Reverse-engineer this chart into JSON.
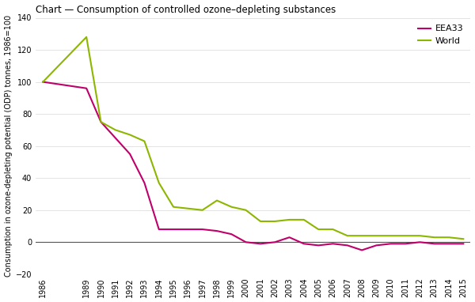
{
  "title": "Chart — Consumption of controlled ozone–depleting substances",
  "ylabel": "Consumption in ozone-depleting potential (ODP) tonnes, 1986=100",
  "years": [
    1986,
    1989,
    1990,
    1991,
    1992,
    1993,
    1994,
    1995,
    1996,
    1997,
    1998,
    1999,
    2000,
    2001,
    2002,
    2003,
    2004,
    2005,
    2006,
    2007,
    2008,
    2009,
    2010,
    2011,
    2012,
    2013,
    2014,
    2015
  ],
  "eea33": [
    100,
    96,
    75,
    65,
    55,
    37,
    8,
    8,
    8,
    8,
    7,
    5,
    0,
    -1,
    0,
    3,
    -1,
    -2,
    -1,
    -2,
    -5,
    -2,
    -1,
    -1,
    0,
    -1,
    -1,
    -1
  ],
  "world": [
    100,
    128,
    75,
    70,
    67,
    63,
    37,
    22,
    21,
    20,
    26,
    22,
    20,
    13,
    13,
    14,
    14,
    8,
    8,
    4,
    4,
    4,
    4,
    4,
    4,
    3,
    3,
    2
  ],
  "eea33_color": "#c0006a",
  "world_color": "#8db600",
  "ylim": [
    -20,
    140
  ],
  "yticks": [
    -20,
    0,
    20,
    40,
    60,
    80,
    100,
    120,
    140
  ],
  "background_color": "#ffffff",
  "zero_line_color": "#555555",
  "title_fontsize": 8.5,
  "axis_fontsize": 7,
  "tick_fontsize": 7,
  "legend_fontsize": 8
}
